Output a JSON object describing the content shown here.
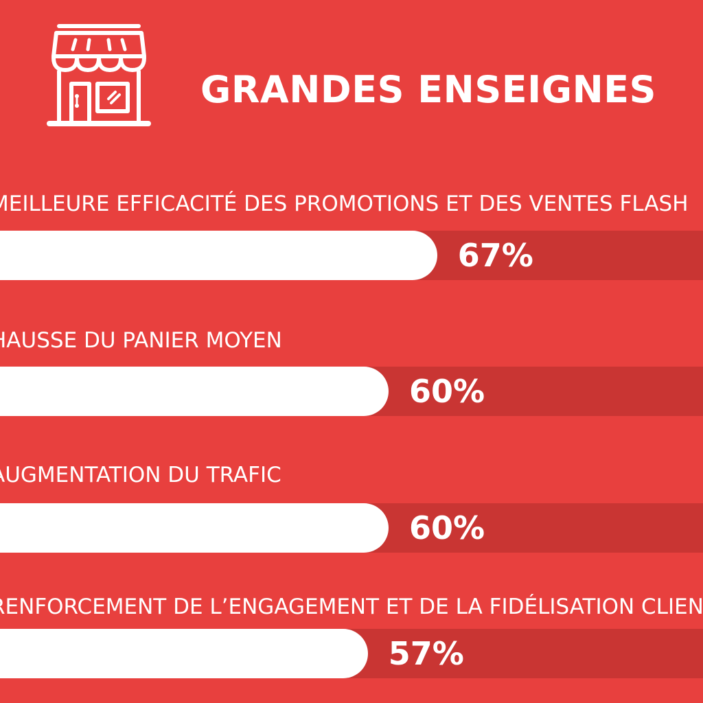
{
  "chart_data": {
    "type": "bar",
    "orientation": "horizontal",
    "title": "GRANDES ENSEIGNES",
    "categories": [
      "MEILLEURE EFFICACITÉ DES PROMOTIONS ET DES VENTES FLASH",
      "HAUSSE DU PANIER MOYEN",
      "AUGMENTATION DU TRAFIC",
      "RENFORCEMENT DE L’ENGAGEMENT ET DE LA FIDÉLISATION CLIENT"
    ],
    "values": [
      67,
      60,
      60,
      57
    ],
    "value_labels": [
      "67%",
      "60%",
      "60%",
      "57%"
    ],
    "unit": "%",
    "xlim": [
      0,
      100
    ],
    "grid": false,
    "legend": "none"
  },
  "icon": "store-icon",
  "colors": {
    "background": "#e8403e",
    "track": "#c93533",
    "bar": "#ffffff",
    "text": "#ffffff"
  }
}
